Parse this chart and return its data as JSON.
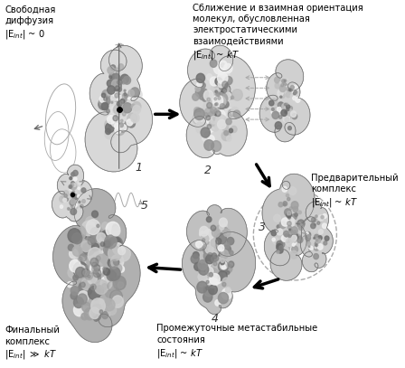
{
  "background_color": "#ffffff",
  "labels": {
    "num1": "1",
    "num2": "2",
    "num3": "3",
    "num4": "4",
    "num5": "5"
  },
  "protein_colors": {
    "light": "#e8e8e8",
    "mid": "#c0c0c0",
    "dark": "#909090",
    "darker": "#707070",
    "darkest": "#505050"
  }
}
